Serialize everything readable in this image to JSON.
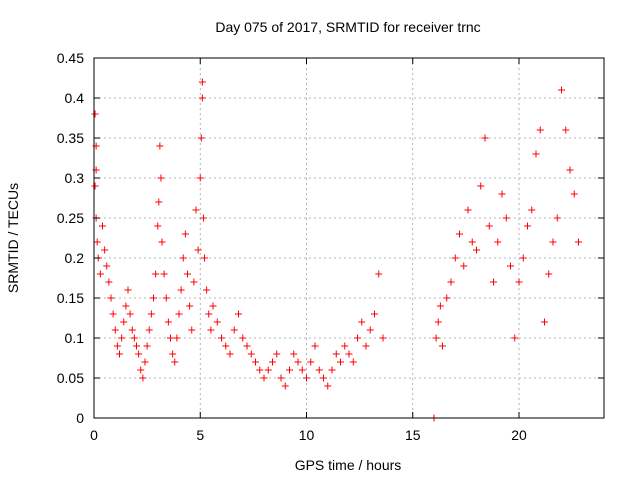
{
  "chart_data": {
    "type": "scatter",
    "title": "Day 075 of 2017, SRMTID for receiver trnc",
    "xlabel": "GPS time / hours",
    "ylabel": "SRMTID / TECUs",
    "xlim": [
      0,
      24
    ],
    "ylim": [
      0,
      0.45
    ],
    "xticks": [
      0,
      5,
      10,
      15,
      20
    ],
    "yticks": [
      0,
      0.05,
      0.1,
      0.15,
      0.2,
      0.25,
      0.3,
      0.35,
      0.4,
      0.45
    ],
    "xtick_labels": [
      "0",
      "5",
      "10",
      "15",
      "20"
    ],
    "ytick_labels": [
      "0",
      "0.05",
      "0.1",
      "0.15",
      "0.2",
      "0.25",
      "0.3",
      "0.35",
      "0.4",
      "0.45"
    ],
    "grid": true,
    "marker": "plus",
    "color": "#ff0000",
    "series": [
      {
        "points": [
          [
            0.05,
            0.38
          ],
          [
            0.1,
            0.34
          ],
          [
            0.1,
            0.31
          ],
          [
            0.05,
            0.29
          ],
          [
            0.1,
            0.25
          ],
          [
            0.15,
            0.22
          ],
          [
            0.2,
            0.2
          ],
          [
            0.3,
            0.18
          ],
          [
            0.4,
            0.24
          ],
          [
            0.5,
            0.21
          ],
          [
            0.6,
            0.19
          ],
          [
            0.7,
            0.17
          ],
          [
            0.8,
            0.15
          ],
          [
            0.9,
            0.13
          ],
          [
            1.0,
            0.11
          ],
          [
            1.1,
            0.09
          ],
          [
            1.2,
            0.08
          ],
          [
            1.3,
            0.1
          ],
          [
            1.4,
            0.12
          ],
          [
            1.5,
            0.14
          ],
          [
            1.6,
            0.16
          ],
          [
            1.7,
            0.13
          ],
          [
            1.8,
            0.11
          ],
          [
            1.9,
            0.1
          ],
          [
            2.0,
            0.09
          ],
          [
            2.1,
            0.08
          ],
          [
            2.2,
            0.06
          ],
          [
            2.3,
            0.05
          ],
          [
            2.4,
            0.07
          ],
          [
            2.5,
            0.09
          ],
          [
            2.6,
            0.11
          ],
          [
            2.7,
            0.13
          ],
          [
            2.8,
            0.15
          ],
          [
            2.9,
            0.18
          ],
          [
            3.0,
            0.24
          ],
          [
            3.05,
            0.27
          ],
          [
            3.1,
            0.34
          ],
          [
            3.15,
            0.3
          ],
          [
            3.2,
            0.22
          ],
          [
            3.3,
            0.18
          ],
          [
            3.4,
            0.15
          ],
          [
            3.5,
            0.12
          ],
          [
            3.6,
            0.1
          ],
          [
            3.7,
            0.08
          ],
          [
            3.8,
            0.07
          ],
          [
            3.9,
            0.1
          ],
          [
            4.0,
            0.13
          ],
          [
            4.1,
            0.16
          ],
          [
            4.2,
            0.2
          ],
          [
            4.3,
            0.23
          ],
          [
            4.4,
            0.18
          ],
          [
            4.5,
            0.14
          ],
          [
            4.6,
            0.11
          ],
          [
            4.7,
            0.17
          ],
          [
            4.8,
            0.26
          ],
          [
            4.9,
            0.21
          ],
          [
            5.0,
            0.3
          ],
          [
            5.05,
            0.35
          ],
          [
            5.1,
            0.4
          ],
          [
            5.1,
            0.42
          ],
          [
            5.15,
            0.25
          ],
          [
            5.2,
            0.2
          ],
          [
            5.3,
            0.16
          ],
          [
            5.4,
            0.13
          ],
          [
            5.5,
            0.11
          ],
          [
            5.6,
            0.14
          ],
          [
            5.8,
            0.12
          ],
          [
            6.0,
            0.1
          ],
          [
            6.2,
            0.09
          ],
          [
            6.4,
            0.08
          ],
          [
            6.6,
            0.11
          ],
          [
            6.8,
            0.13
          ],
          [
            7.0,
            0.1
          ],
          [
            7.2,
            0.09
          ],
          [
            7.4,
            0.08
          ],
          [
            7.6,
            0.07
          ],
          [
            7.8,
            0.06
          ],
          [
            8.0,
            0.05
          ],
          [
            8.2,
            0.06
          ],
          [
            8.4,
            0.07
          ],
          [
            8.6,
            0.08
          ],
          [
            8.8,
            0.05
          ],
          [
            9.0,
            0.04
          ],
          [
            9.2,
            0.06
          ],
          [
            9.4,
            0.08
          ],
          [
            9.6,
            0.07
          ],
          [
            9.8,
            0.06
          ],
          [
            10.0,
            0.05
          ],
          [
            10.2,
            0.07
          ],
          [
            10.4,
            0.09
          ],
          [
            10.6,
            0.06
          ],
          [
            10.8,
            0.05
          ],
          [
            11.0,
            0.04
          ],
          [
            11.2,
            0.06
          ],
          [
            11.4,
            0.08
          ],
          [
            11.6,
            0.07
          ],
          [
            11.8,
            0.09
          ],
          [
            12.0,
            0.08
          ],
          [
            12.2,
            0.07
          ],
          [
            12.4,
            0.1
          ],
          [
            12.6,
            0.12
          ],
          [
            12.8,
            0.09
          ],
          [
            13.0,
            0.11
          ],
          [
            13.2,
            0.13
          ],
          [
            13.4,
            0.18
          ],
          [
            13.6,
            0.1
          ],
          [
            16.0,
            0.0
          ],
          [
            16.1,
            0.1
          ],
          [
            16.2,
            0.12
          ],
          [
            16.3,
            0.14
          ],
          [
            16.4,
            0.09
          ],
          [
            16.6,
            0.15
          ],
          [
            16.8,
            0.17
          ],
          [
            17.0,
            0.2
          ],
          [
            17.2,
            0.23
          ],
          [
            17.4,
            0.19
          ],
          [
            17.6,
            0.26
          ],
          [
            17.8,
            0.22
          ],
          [
            18.0,
            0.21
          ],
          [
            18.2,
            0.29
          ],
          [
            18.4,
            0.35
          ],
          [
            18.6,
            0.24
          ],
          [
            18.8,
            0.17
          ],
          [
            19.0,
            0.22
          ],
          [
            19.2,
            0.28
          ],
          [
            19.4,
            0.25
          ],
          [
            19.6,
            0.19
          ],
          [
            19.8,
            0.1
          ],
          [
            20.0,
            0.17
          ],
          [
            20.2,
            0.2
          ],
          [
            20.4,
            0.24
          ],
          [
            20.6,
            0.26
          ],
          [
            20.8,
            0.33
          ],
          [
            21.0,
            0.36
          ],
          [
            21.2,
            0.12
          ],
          [
            21.4,
            0.18
          ],
          [
            21.6,
            0.22
          ],
          [
            21.8,
            0.25
          ],
          [
            22.0,
            0.41
          ],
          [
            22.2,
            0.36
          ],
          [
            22.4,
            0.31
          ],
          [
            22.6,
            0.28
          ],
          [
            22.8,
            0.22
          ]
        ]
      }
    ]
  }
}
